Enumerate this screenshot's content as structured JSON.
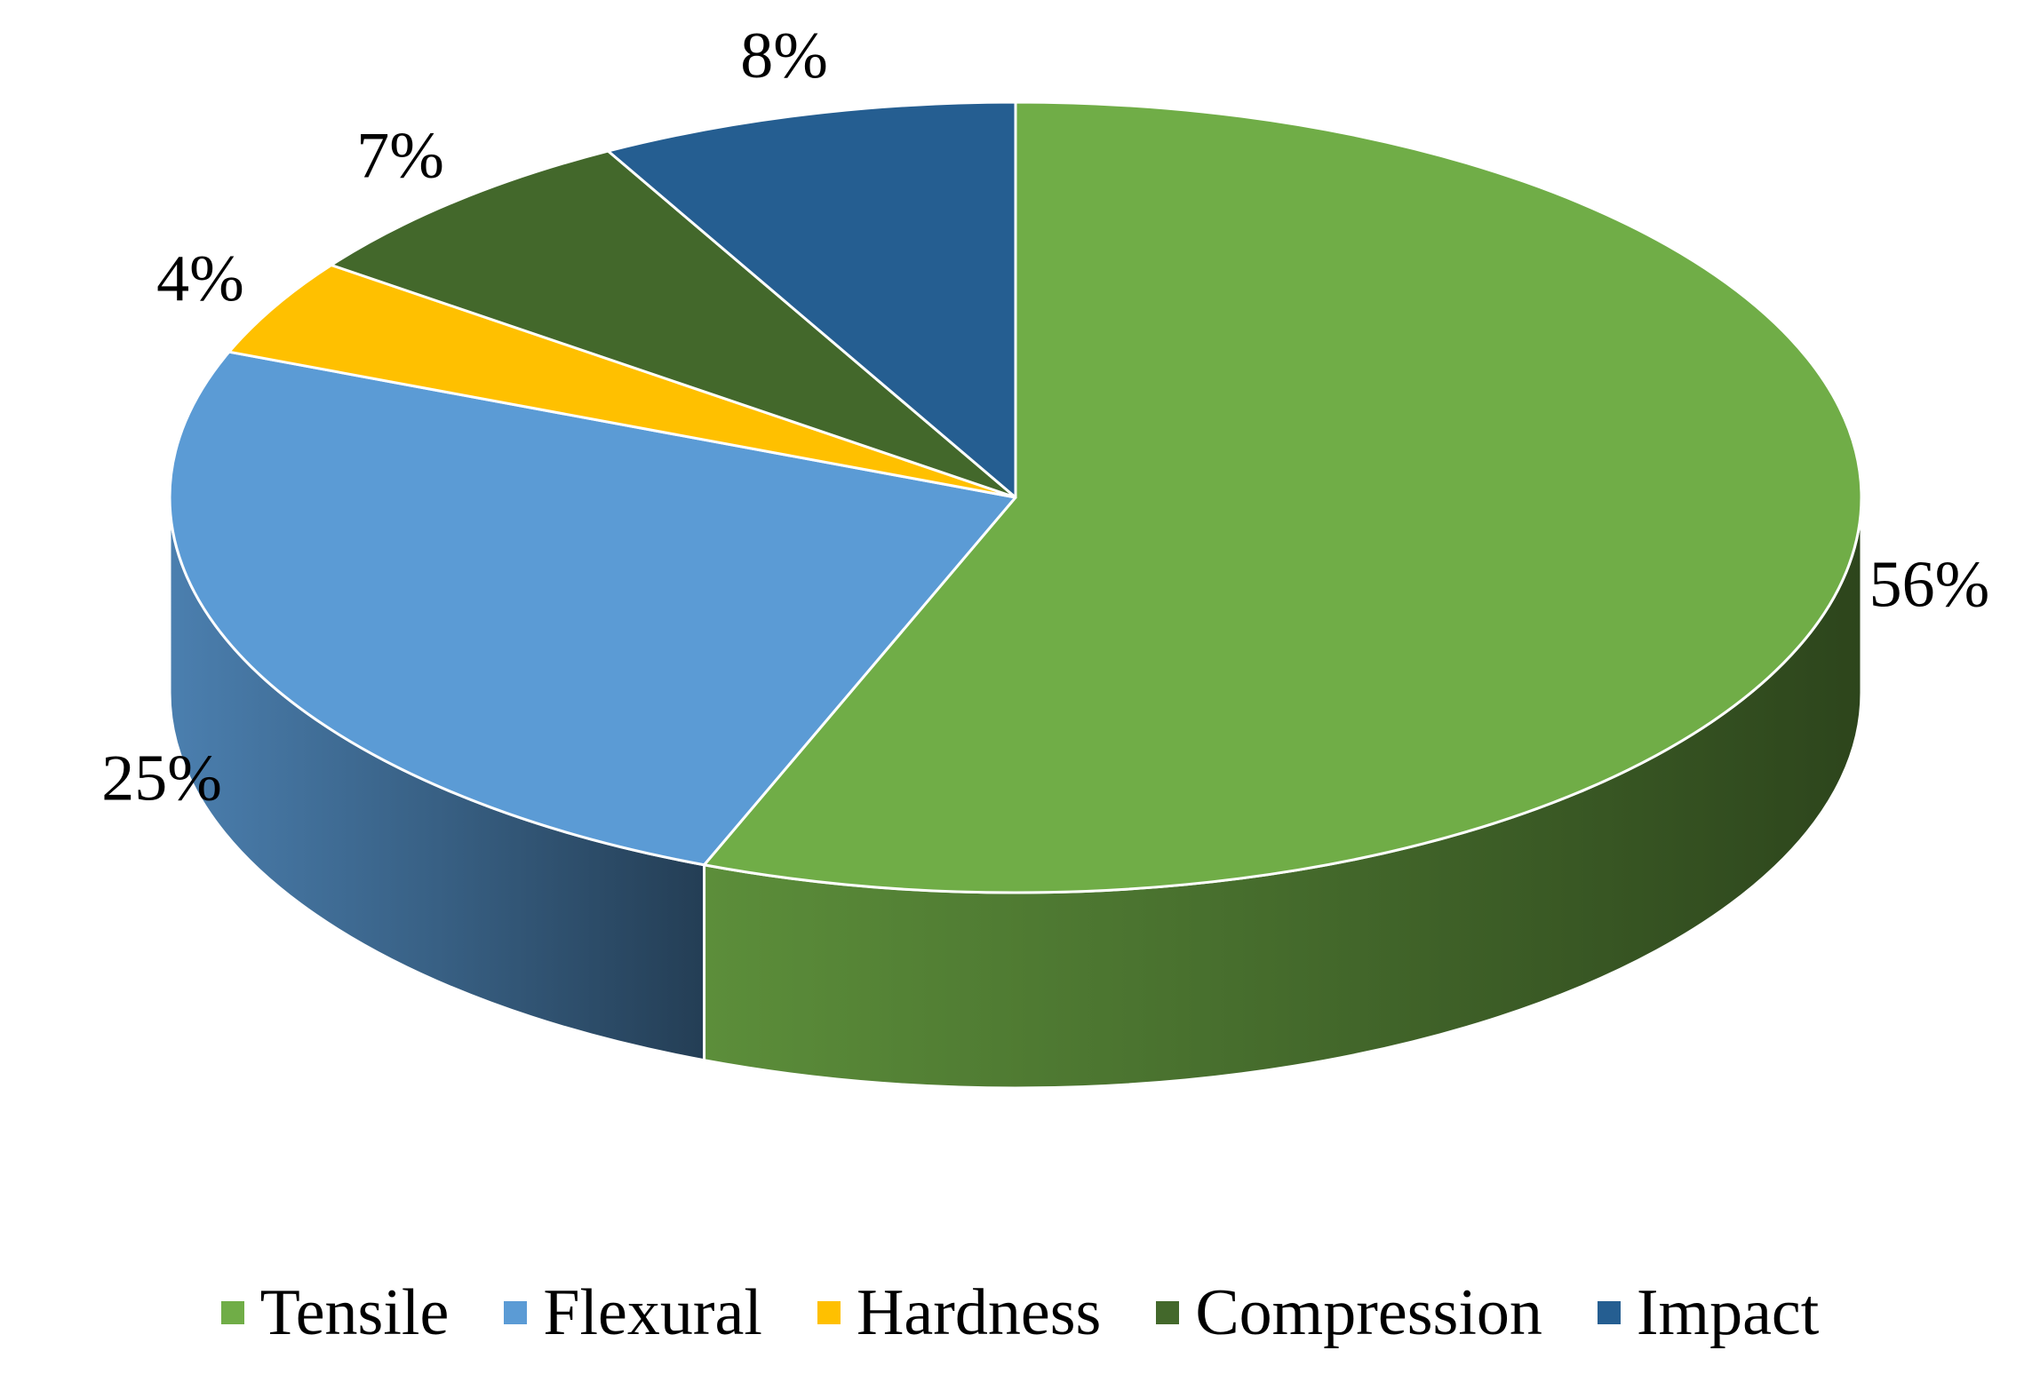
{
  "chart_data": {
    "type": "pie",
    "style": "3d-tilted",
    "categories": [
      "Tensile",
      "Flexural",
      "Hardness",
      "Compression",
      "Impact"
    ],
    "values": [
      56,
      25,
      4,
      7,
      8
    ],
    "labels": [
      "56%",
      "25%",
      "4%",
      "7%",
      "8%"
    ],
    "colors": [
      "#70AD47",
      "#5B9BD5",
      "#FFC000",
      "#43682B",
      "#255E91"
    ],
    "legend": {
      "placement": "bottom",
      "entries": [
        "Tensile",
        "Flexural",
        "Hardness",
        "Compression",
        "Impact"
      ]
    },
    "title": ""
  }
}
